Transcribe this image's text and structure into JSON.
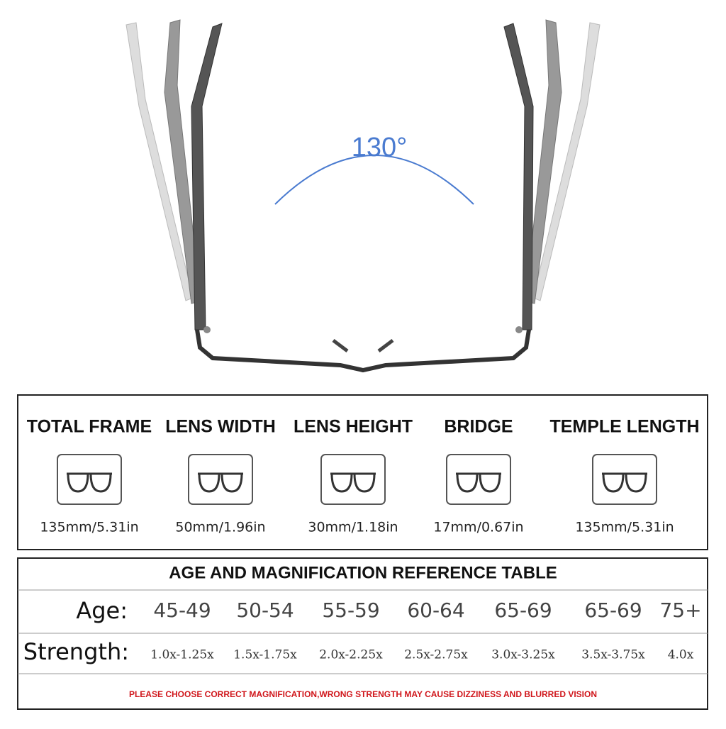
{
  "angle": "130°",
  "measurements": [
    {
      "label": "TOTAL FRAME",
      "value": "135mm/5.31in"
    },
    {
      "label": "LENS WIDTH",
      "value": "50mm/1.96in"
    },
    {
      "label": "LENS HEIGHT",
      "value": "30mm/1.18in"
    },
    {
      "label": "BRIDGE",
      "value": "17mm/0.67in"
    },
    {
      "label": "TEMPLE LENGTH",
      "value": "135mm/5.31in"
    }
  ],
  "table": {
    "title": "AGE AND MAGNIFICATION REFERENCE TABLE",
    "age_label": "Age:",
    "ages": [
      "45-49",
      "50-54",
      "55-59",
      "60-64",
      "65-69",
      "65-69",
      "75+"
    ],
    "strength_label": "Strength:",
    "strengths": [
      "1.0x-1.25x",
      "1.5x-1.75x",
      "2.0x-2.25x",
      "2.5x-2.75x",
      "3.0x-3.25x",
      "3.5x-3.75x",
      "4.0x"
    ]
  },
  "warning": "PLEASE CHOOSE CORRECT MAGNIFICATION,WRONG STRENGTH MAY CAUSE DIZZINESS AND BLURRED VISION"
}
